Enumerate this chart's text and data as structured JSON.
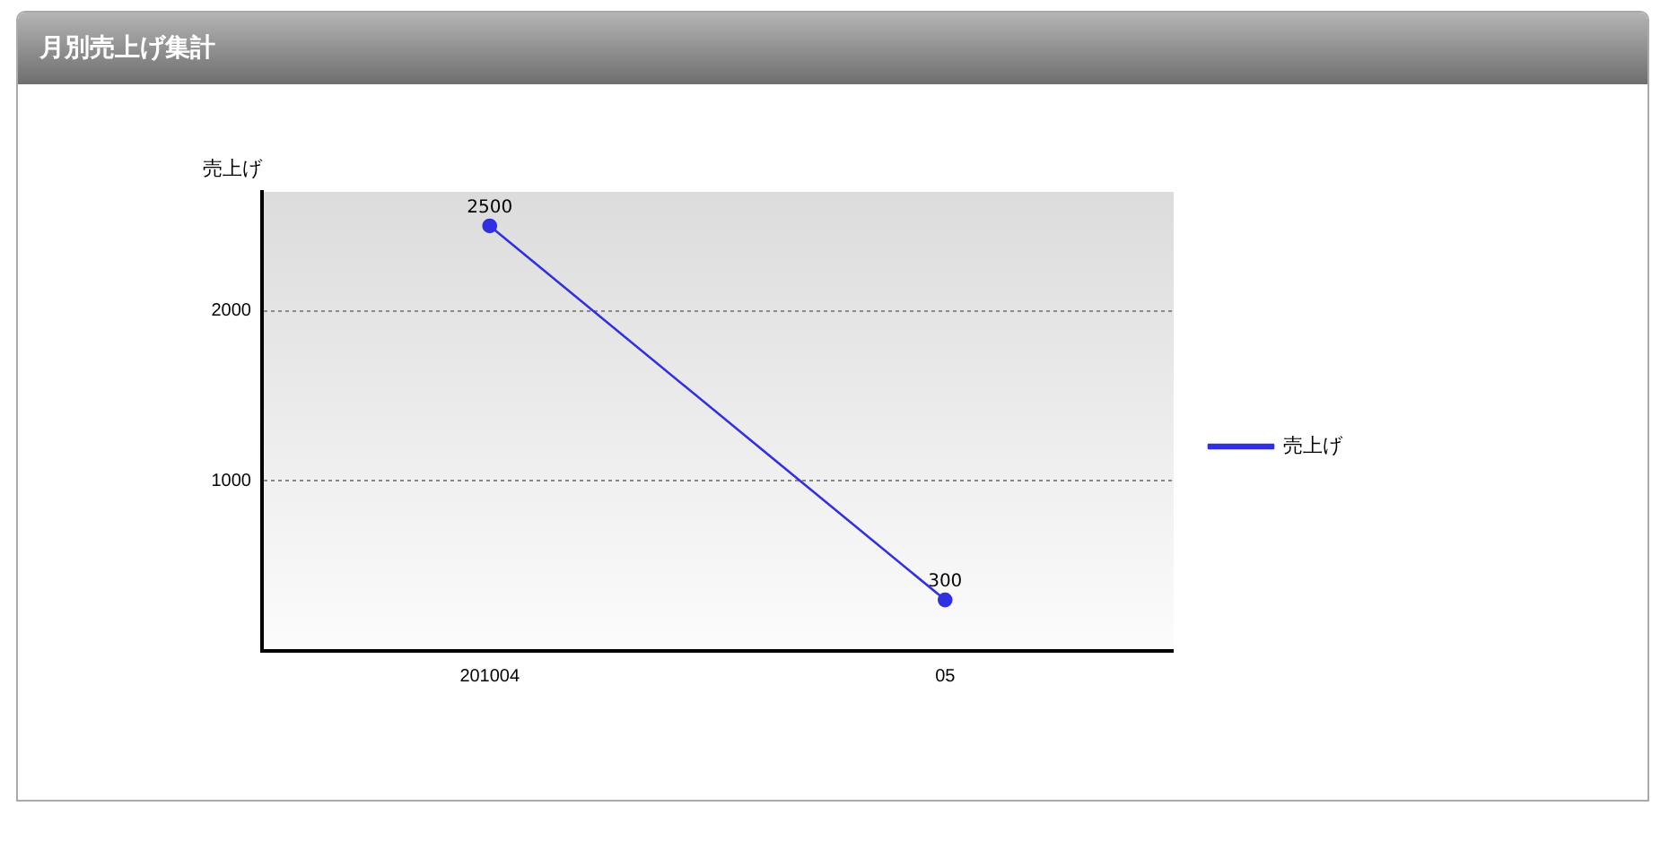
{
  "chart_data": {
    "type": "line",
    "title": "月別売上げ集計",
    "ylabel": "売上げ",
    "categories": [
      "201004",
      "05"
    ],
    "series": [
      {
        "name": "売上げ",
        "color": "#3030e0",
        "values": [
          2500,
          300
        ]
      }
    ],
    "ylim": [
      0,
      2700
    ],
    "yticks": [
      1000,
      2000
    ],
    "grid": "y",
    "legend": "right",
    "marker": "circle",
    "line_style": "solid",
    "data_labels": true
  }
}
